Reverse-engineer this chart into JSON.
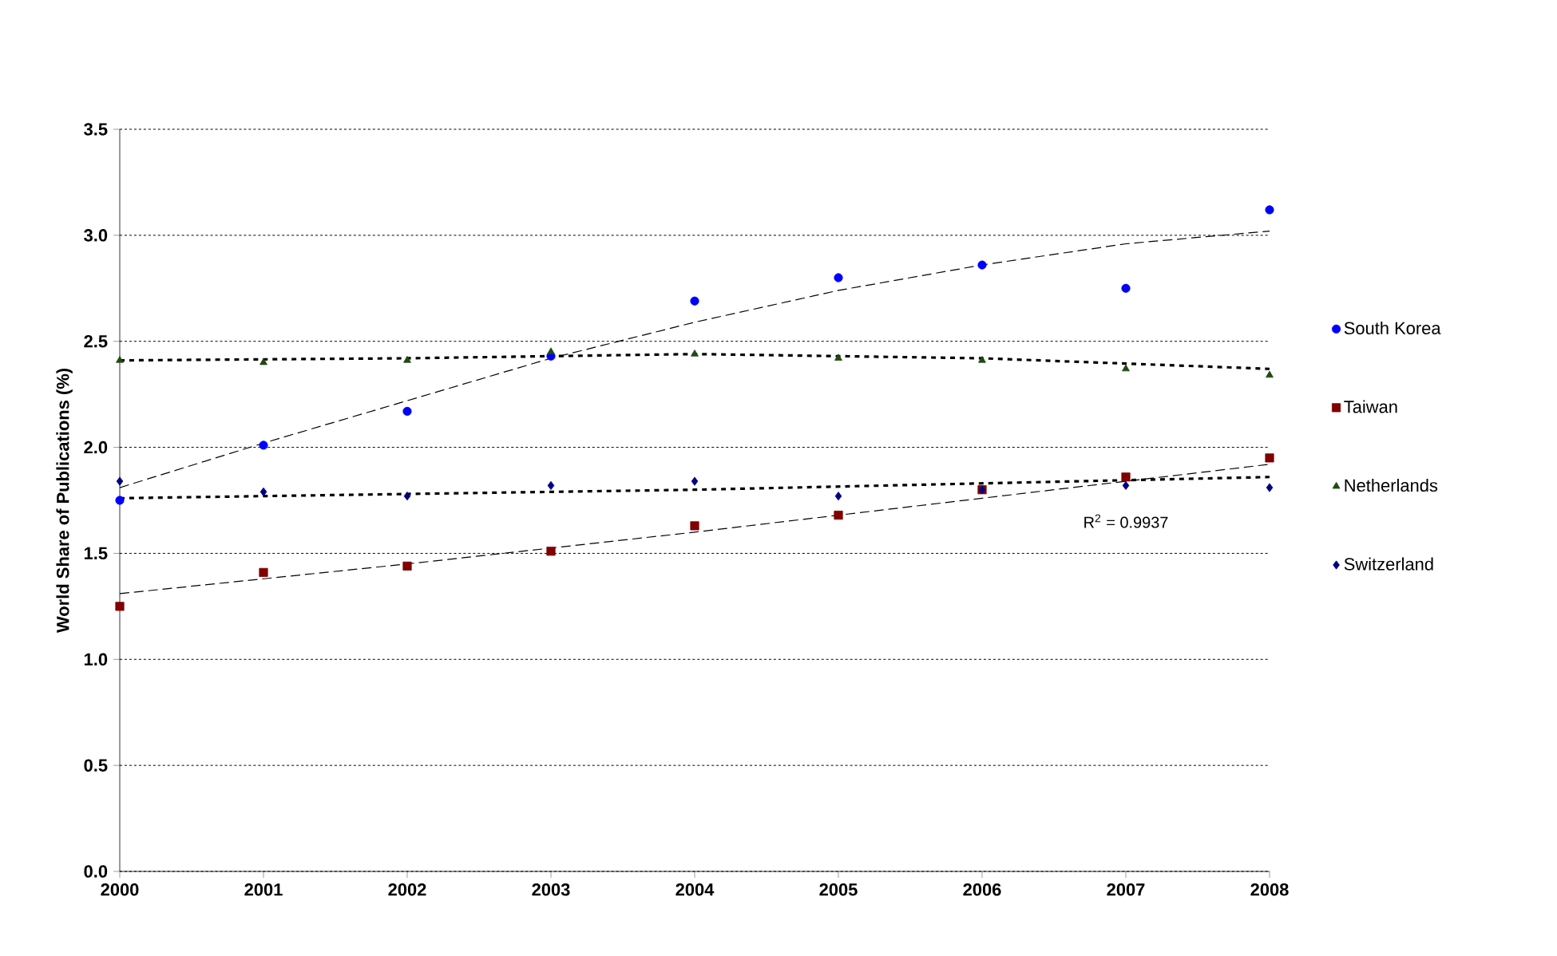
{
  "chart_data": {
    "type": "scatter",
    "ylabel": "World Share of Publications (%)",
    "x": [
      2000,
      2001,
      2002,
      2003,
      2004,
      2005,
      2006,
      2007,
      2008
    ],
    "xlim": [
      2000,
      2008
    ],
    "xticks": [
      2000,
      2001,
      2002,
      2003,
      2004,
      2005,
      2006,
      2007,
      2008
    ],
    "ylim": [
      0,
      3.5
    ],
    "yticks": [
      {
        "value": 0,
        "label": "0.0"
      },
      0.5,
      {
        "value": 1,
        "label": "1.0"
      },
      1.5,
      {
        "value": 2,
        "label": "2.0"
      },
      2.5,
      {
        "value": 3,
        "label": "3.0"
      },
      3.5
    ],
    "grid": "y",
    "legend": "right",
    "series": [
      {
        "name": "South Korea",
        "color": "#0000ff",
        "marker": "circle",
        "values": [
          1.75,
          2.01,
          2.17,
          2.43,
          2.69,
          2.8,
          2.86,
          2.75,
          3.12
        ]
      },
      {
        "name": "Taiwan",
        "color": "#800000",
        "marker": "square",
        "values": [
          1.25,
          1.41,
          1.44,
          1.51,
          1.63,
          1.68,
          1.8,
          1.86,
          1.95
        ]
      },
      {
        "name": "Netherlands",
        "color": "#1f4a12",
        "marker": "triangle",
        "values": [
          2.41,
          2.4,
          2.41,
          2.45,
          2.44,
          2.42,
          2.41,
          2.37,
          2.34
        ]
      },
      {
        "name": "Switzerland",
        "color": "#000080",
        "marker": "diamond",
        "values": [
          1.84,
          1.79,
          1.77,
          1.82,
          1.84,
          1.77,
          1.8,
          1.82,
          1.81
        ]
      },
      {
        "type": "line",
        "color": "#000000",
        "line_style": "dashed",
        "x": [
          2000,
          2001,
          2002,
          2003,
          2004,
          2005,
          2006,
          2007,
          2008
        ],
        "values": [
          1.81,
          2.02,
          2.22,
          2.42,
          2.59,
          2.74,
          2.86,
          2.96,
          3.02
        ]
      },
      {
        "type": "line",
        "color": "#000000",
        "line_style": "dashed",
        "x": [
          2000,
          2002,
          2004,
          2006,
          2008
        ],
        "values": [
          1.31,
          1.45,
          1.6,
          1.76,
          1.92
        ]
      },
      {
        "type": "line",
        "color": "#000000",
        "line_style": "dotted",
        "x": [
          2000,
          2002,
          2004,
          2006,
          2008
        ],
        "values": [
          2.41,
          2.42,
          2.44,
          2.42,
          2.37
        ]
      },
      {
        "type": "line",
        "color": "#000000",
        "line_style": "dotted",
        "x": [
          2000,
          2004,
          2008
        ],
        "values": [
          1.76,
          1.8,
          1.86
        ]
      }
    ],
    "annotations": [
      "R$^{2}$ = 0.9937"
    ]
  }
}
